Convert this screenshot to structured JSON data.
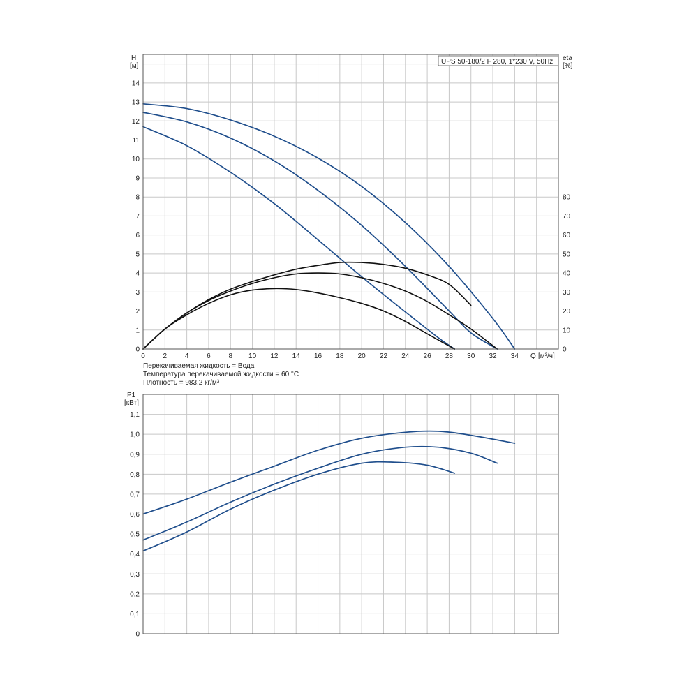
{
  "model_label": "UPS 50-180/2 F 280, 1*230 V, 50Hz",
  "notes": [
    "Перекачиваемая жидкость = Вода",
    "Температура перекачиваемой жидкости = 60 °C",
    "Плотность = 983.2 кг/м³"
  ],
  "colors": {
    "curve": "#1f4e8c",
    "eff_curve": "#111111",
    "grid": "#c8c8c8",
    "frame": "#555555"
  },
  "chart_data": [
    {
      "type": "line",
      "name": "head-and-efficiency",
      "x_axis": {
        "label_symbol": "Q",
        "label_unit": "[м³/ч]",
        "range": [
          0,
          38
        ],
        "ticks": [
          0,
          2,
          4,
          6,
          8,
          10,
          12,
          14,
          16,
          18,
          20,
          22,
          24,
          26,
          28,
          30,
          32,
          34
        ]
      },
      "y_axis_left": {
        "label_symbol": "H",
        "label_unit": "[м]",
        "range": [
          0,
          15.5
        ],
        "ticks": [
          0,
          1,
          2,
          3,
          4,
          5,
          6,
          7,
          8,
          9,
          10,
          11,
          12,
          13,
          14
        ]
      },
      "y_axis_right": {
        "label_symbol": "eta",
        "label_unit": "[%]",
        "range": [
          0,
          155
        ],
        "ticks": [
          0,
          10,
          20,
          30,
          40,
          50,
          60,
          70,
          80
        ]
      },
      "grid": true,
      "series": [
        {
          "axis": "left",
          "kind": "head",
          "points": [
            [
              0,
              12.9
            ],
            [
              4,
              12.65
            ],
            [
              8,
              12.05
            ],
            [
              12,
              11.2
            ],
            [
              16,
              10.05
            ],
            [
              20,
              8.55
            ],
            [
              24,
              6.65
            ],
            [
              28,
              4.35
            ],
            [
              32,
              1.6
            ],
            [
              34,
              0
            ]
          ]
        },
        {
          "axis": "left",
          "kind": "head",
          "points": [
            [
              0,
              12.45
            ],
            [
              4,
              11.95
            ],
            [
              8,
              11.1
            ],
            [
              12,
              9.9
            ],
            [
              16,
              8.35
            ],
            [
              20,
              6.5
            ],
            [
              24,
              4.35
            ],
            [
              28,
              2.0
            ],
            [
              30,
              0.85
            ],
            [
              32.4,
              0
            ]
          ]
        },
        {
          "axis": "left",
          "kind": "head",
          "points": [
            [
              0,
              11.7
            ],
            [
              4,
              10.7
            ],
            [
              8,
              9.3
            ],
            [
              12,
              7.65
            ],
            [
              16,
              5.75
            ],
            [
              20,
              3.8
            ],
            [
              24,
              1.95
            ],
            [
              27,
              0.6
            ],
            [
              28.5,
              0
            ]
          ]
        },
        {
          "axis": "right",
          "kind": "efficiency",
          "points": [
            [
              0,
              0
            ],
            [
              2,
              10.5
            ],
            [
              4,
              19
            ],
            [
              6,
              26
            ],
            [
              8,
              31.5
            ],
            [
              10,
              35.5
            ],
            [
              12,
              39
            ],
            [
              14,
              42
            ],
            [
              16,
              44
            ],
            [
              18,
              45.5
            ],
            [
              20,
              45.5
            ],
            [
              22,
              44.5
            ],
            [
              24,
              42.5
            ],
            [
              26,
              39
            ],
            [
              28,
              34
            ],
            [
              30,
              23
            ]
          ]
        },
        {
          "axis": "right",
          "kind": "efficiency",
          "points": [
            [
              0,
              0
            ],
            [
              2,
              10.5
            ],
            [
              4,
              19
            ],
            [
              6,
              25.5
            ],
            [
              8,
              30.5
            ],
            [
              10,
              34.5
            ],
            [
              12,
              37.5
            ],
            [
              14,
              39.5
            ],
            [
              16,
              40
            ],
            [
              18,
              39.5
            ],
            [
              20,
              37.5
            ],
            [
              22,
              34.5
            ],
            [
              24,
              30.5
            ],
            [
              26,
              25
            ],
            [
              28,
              18
            ],
            [
              30,
              10.5
            ],
            [
              32.4,
              0
            ]
          ]
        },
        {
          "axis": "right",
          "kind": "efficiency",
          "points": [
            [
              0,
              0
            ],
            [
              2,
              10.5
            ],
            [
              4,
              18
            ],
            [
              6,
              24
            ],
            [
              8,
              28.5
            ],
            [
              10,
              31
            ],
            [
              12,
              31.8
            ],
            [
              14,
              31.3
            ],
            [
              16,
              29.5
            ],
            [
              18,
              27
            ],
            [
              20,
              24
            ],
            [
              22,
              20
            ],
            [
              24,
              14.5
            ],
            [
              26,
              8
            ],
            [
              28.5,
              0
            ]
          ]
        }
      ]
    },
    {
      "type": "line",
      "name": "power",
      "y_axis_left": {
        "label_symbol": "P1",
        "label_unit": "[кВт]",
        "range": [
          0,
          1.2
        ],
        "ticks": [
          "0",
          "0,1",
          "0,2",
          "0,3",
          "0,4",
          "0,5",
          "0,6",
          "0,7",
          "0,8",
          "0,9",
          "1,0",
          "1,1"
        ]
      },
      "x_axis": {
        "range": [
          0,
          38
        ]
      },
      "grid": true,
      "series": [
        {
          "kind": "power",
          "points": [
            [
              0,
              0.6
            ],
            [
              4,
              0.675
            ],
            [
              8,
              0.76
            ],
            [
              12,
              0.84
            ],
            [
              16,
              0.92
            ],
            [
              20,
              0.98
            ],
            [
              24,
              1.01
            ],
            [
              27,
              1.015
            ],
            [
              30,
              0.995
            ],
            [
              34,
              0.955
            ]
          ]
        },
        {
          "kind": "power",
          "points": [
            [
              0,
              0.47
            ],
            [
              4,
              0.56
            ],
            [
              8,
              0.66
            ],
            [
              12,
              0.75
            ],
            [
              16,
              0.83
            ],
            [
              20,
              0.9
            ],
            [
              24,
              0.935
            ],
            [
              27,
              0.935
            ],
            [
              30,
              0.905
            ],
            [
              32.4,
              0.855
            ]
          ]
        },
        {
          "kind": "power",
          "points": [
            [
              0,
              0.415
            ],
            [
              4,
              0.51
            ],
            [
              8,
              0.625
            ],
            [
              12,
              0.72
            ],
            [
              16,
              0.8
            ],
            [
              20,
              0.855
            ],
            [
              23,
              0.86
            ],
            [
              26,
              0.845
            ],
            [
              28.5,
              0.805
            ]
          ]
        }
      ]
    }
  ]
}
